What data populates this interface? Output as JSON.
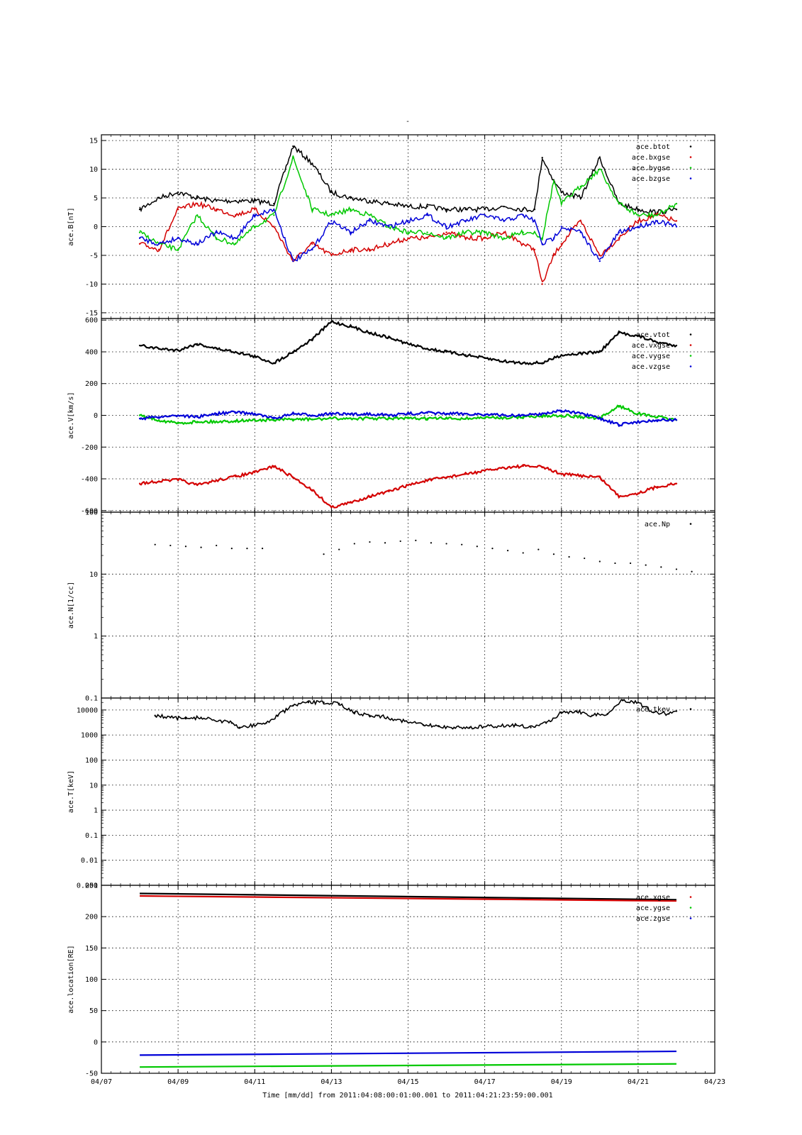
{
  "figure": {
    "top_mark": "-",
    "xlabel": "Time [mm/dd]  from 2011:04:08:00:01:00.001  to  2011:04:21:23:59:00.001",
    "x_ticks": [
      "04/07",
      "04/09",
      "04/11",
      "04/13",
      "04/15",
      "04/17",
      "04/19",
      "04/21",
      "04/23"
    ],
    "x_range_days": [
      0,
      16
    ],
    "colors": {
      "black": "#000000",
      "red": "#d40000",
      "green": "#00c800",
      "blue": "#0000d8",
      "grid": "#000000"
    }
  },
  "chart_data": [
    {
      "type": "scatter",
      "ylabel": "ace.B[nT]",
      "ylim": [
        -16,
        16
      ],
      "yscale": "linear",
      "y_ticks": [
        15,
        10,
        5,
        0,
        -5,
        -10,
        -15
      ],
      "legend": [
        "ace.btot",
        "ace.bxgse",
        "ace.bygse",
        "ace.bzgse"
      ],
      "series": [
        {
          "name": "ace.btot",
          "color": "black",
          "x": [
            1,
            1.5,
            2,
            2.5,
            3,
            3.5,
            4,
            4.5,
            5,
            5.5,
            6,
            6.5,
            7,
            7.5,
            8,
            8.5,
            9,
            9.5,
            10,
            10.5,
            11,
            11.3,
            11.5,
            11.8,
            12,
            12.5,
            13,
            13.5,
            14,
            14.5,
            15
          ],
          "y": [
            3,
            5,
            6,
            5,
            4.5,
            4.5,
            4.5,
            4,
            14,
            11,
            6,
            5,
            4.5,
            4,
            3.5,
            3.5,
            3,
            3,
            3,
            3.5,
            3,
            3,
            12,
            8,
            6,
            5,
            12,
            4,
            3,
            2.5,
            3
          ]
        },
        {
          "name": "ace.bxgse",
          "color": "red",
          "x": [
            1,
            1.5,
            2,
            2.5,
            3,
            3.5,
            4,
            4.5,
            5,
            5.5,
            6,
            6.5,
            7,
            7.5,
            8,
            8.5,
            9,
            9.5,
            10,
            10.5,
            11,
            11.3,
            11.5,
            11.8,
            12,
            12.5,
            13,
            13.5,
            14,
            14.5,
            15
          ],
          "y": [
            -3,
            -4,
            3,
            4,
            3,
            2,
            3,
            0,
            -6,
            -3,
            -5,
            -4,
            -4,
            -3,
            -2,
            -2,
            -1,
            -2,
            -2,
            -1,
            -3,
            -4,
            -10,
            -5,
            -3,
            1,
            -5,
            -2,
            1,
            2,
            1
          ]
        },
        {
          "name": "ace.bygse",
          "color": "green",
          "x": [
            1,
            1.5,
            2,
            2.5,
            3,
            3.5,
            4,
            4.5,
            5,
            5.5,
            6,
            6.5,
            7,
            7.5,
            8,
            8.5,
            9,
            9.5,
            10,
            10.5,
            11,
            11.3,
            11.5,
            11.8,
            12,
            12.5,
            13,
            13.5,
            14,
            14.5,
            15
          ],
          "y": [
            -1,
            -3,
            -4,
            2,
            -2,
            -3,
            0,
            2,
            12,
            3,
            2,
            3,
            2,
            0,
            -1,
            -1,
            -2,
            -1,
            -1,
            -2,
            -1,
            -1,
            -2,
            8,
            4,
            7,
            10,
            4,
            2,
            2,
            4
          ]
        },
        {
          "name": "ace.bzgse",
          "color": "blue",
          "x": [
            1,
            1.5,
            2,
            2.5,
            3,
            3.5,
            4,
            4.5,
            5,
            5.5,
            6,
            6.5,
            7,
            7.5,
            8,
            8.5,
            9,
            9.5,
            10,
            10.5,
            11,
            11.3,
            11.5,
            11.8,
            12,
            12.5,
            13,
            13.5,
            14,
            14.5,
            15
          ],
          "y": [
            -2,
            -3,
            -2,
            -3,
            -1,
            -2,
            2,
            3,
            -6,
            -4,
            1,
            -1,
            1,
            0,
            1,
            2,
            0,
            1,
            2,
            1,
            2,
            1,
            -3,
            -2,
            0,
            -1,
            -6,
            -1,
            0,
            1,
            0
          ]
        }
      ]
    },
    {
      "type": "scatter",
      "ylabel": "ace.V[km/s]",
      "ylim": [
        -610,
        610
      ],
      "yscale": "linear",
      "y_ticks": [
        600,
        400,
        200,
        0,
        -200,
        -400,
        -600
      ],
      "legend": [
        "ace.vtot",
        "ace.vxgse",
        "ace.vygse",
        "ace.vzgse"
      ],
      "series": [
        {
          "name": "ace.vtot",
          "color": "black",
          "x": [
            1,
            1.5,
            2,
            2.5,
            3,
            3.5,
            4,
            4.5,
            5,
            5.5,
            6,
            6.5,
            7,
            7.5,
            8,
            8.5,
            9,
            9.5,
            10,
            10.5,
            11,
            11.5,
            12,
            12.5,
            13,
            13.5,
            14,
            14.5,
            15
          ],
          "y": [
            440,
            420,
            410,
            450,
            420,
            400,
            370,
            330,
            400,
            480,
            590,
            560,
            520,
            490,
            450,
            420,
            400,
            380,
            360,
            340,
            330,
            330,
            380,
            390,
            400,
            520,
            500,
            460,
            440
          ]
        },
        {
          "name": "ace.vxgse",
          "color": "red",
          "x": [
            1,
            1.5,
            2,
            2.5,
            3,
            3.5,
            4,
            4.5,
            5,
            5.5,
            6,
            6.5,
            7,
            7.5,
            8,
            8.5,
            9,
            9.5,
            10,
            10.5,
            11,
            11.5,
            12,
            12.5,
            13,
            13.5,
            14,
            14.5,
            15
          ],
          "y": [
            -430,
            -415,
            -405,
            -440,
            -410,
            -385,
            -360,
            -320,
            -390,
            -470,
            -580,
            -550,
            -510,
            -480,
            -440,
            -410,
            -390,
            -370,
            -350,
            -330,
            -320,
            -325,
            -370,
            -380,
            -390,
            -510,
            -490,
            -450,
            -430
          ]
        },
        {
          "name": "ace.vygse",
          "color": "green",
          "x": [
            1,
            1.5,
            2,
            2.5,
            3,
            3.5,
            4,
            4.5,
            5,
            5.5,
            6,
            6.5,
            7,
            7.5,
            8,
            8.5,
            9,
            9.5,
            10,
            10.5,
            11,
            11.5,
            12,
            12.5,
            13,
            13.5,
            14,
            14.5,
            15
          ],
          "y": [
            0,
            -30,
            -50,
            -40,
            -40,
            -35,
            -30,
            -30,
            -25,
            -25,
            -20,
            -20,
            -20,
            -20,
            -20,
            -20,
            -20,
            -20,
            -15,
            -15,
            -10,
            -5,
            0,
            -10,
            -20,
            60,
            10,
            -10,
            -30
          ]
        },
        {
          "name": "ace.vzgse",
          "color": "blue",
          "x": [
            1,
            1.5,
            2,
            2.5,
            3,
            3.5,
            4,
            4.5,
            5,
            5.5,
            6,
            6.5,
            7,
            7.5,
            8,
            8.5,
            9,
            9.5,
            10,
            10.5,
            11,
            11.5,
            12,
            12.5,
            13,
            13.5,
            14,
            14.5,
            15
          ],
          "y": [
            -20,
            -10,
            0,
            -10,
            10,
            20,
            10,
            -20,
            10,
            0,
            10,
            5,
            10,
            0,
            10,
            15,
            10,
            10,
            5,
            0,
            0,
            10,
            30,
            10,
            -20,
            -60,
            -40,
            -30,
            -30
          ]
        }
      ]
    },
    {
      "type": "scatter",
      "ylabel": "ace.N[1/cc]",
      "ylim": [
        0.1,
        100
      ],
      "yscale": "log",
      "y_ticks": [
        100,
        10,
        1,
        0.1
      ],
      "legend": [
        "ace.Np"
      ],
      "series": [
        {
          "name": "ace.Np",
          "color": "black",
          "x": [
            1.4,
            1.8,
            2.2,
            2.6,
            3.0,
            3.4,
            3.8,
            4.2,
            5.8,
            6.2,
            6.6,
            7.0,
            7.4,
            7.8,
            8.2,
            8.6,
            9.0,
            9.4,
            9.8,
            10.2,
            10.6,
            11.0,
            11.4,
            11.8,
            12.2,
            12.6,
            13.0,
            13.4,
            13.8,
            14.2,
            14.6,
            15.0,
            15.4
          ],
          "y": [
            30,
            29,
            28,
            27,
            29,
            26,
            26,
            26,
            21,
            25,
            31,
            33,
            32,
            34,
            35,
            32,
            31,
            30,
            28,
            26,
            24,
            22,
            25,
            21,
            19,
            18,
            16,
            15,
            15,
            14,
            13,
            12,
            11
          ]
        }
      ]
    },
    {
      "type": "scatter",
      "ylabel": "ace.T[keV]",
      "ylim": [
        0.001,
        30000
      ],
      "yscale": "log",
      "y_ticks": [
        10000,
        1000,
        100,
        10,
        1,
        0.1,
        0.01,
        0.001
      ],
      "legend": [
        "ace.tkev"
      ],
      "series": [
        {
          "name": "ace.tkev",
          "color": "black",
          "x": [
            1.4,
            1.8,
            2.2,
            2.6,
            3.4,
            3.6,
            4.3,
            4.6,
            5.0,
            5.4,
            5.8,
            6.2,
            6.6,
            7.0,
            7.2,
            8.4,
            8.8,
            9.2,
            9.6,
            10.8,
            11.2,
            11.6,
            12.0,
            12.4,
            12.8,
            13.2,
            13.6,
            14.0,
            14.4,
            14.8,
            15.0
          ],
          "y": [
            6000,
            5000,
            4500,
            5000,
            3000,
            2000,
            3000,
            6000,
            15000,
            20000,
            20000,
            18000,
            8000,
            6000,
            6000,
            2500,
            2200,
            2000,
            2000,
            2500,
            2000,
            3000,
            8000,
            9000,
            6000,
            7000,
            25000,
            20000,
            8000,
            7000,
            9000
          ]
        }
      ]
    },
    {
      "type": "line",
      "ylabel": "ace.location[RE]",
      "ylim": [
        -50,
        250
      ],
      "yscale": "linear",
      "y_ticks": [
        250,
        200,
        150,
        100,
        50,
        0,
        -50
      ],
      "legend": [
        "ace.xgse",
        "ace.ygse",
        "ace.zgse"
      ],
      "series": [
        {
          "name": "",
          "color": "black",
          "x": [
            1,
            15
          ],
          "y": [
            237,
            227
          ]
        },
        {
          "name": "ace.xgse",
          "color": "red",
          "x": [
            1,
            15
          ],
          "y": [
            233,
            225
          ]
        },
        {
          "name": "ace.ygse",
          "color": "green",
          "x": [
            1,
            15
          ],
          "y": [
            -40,
            -35
          ]
        },
        {
          "name": "ace.zgse",
          "color": "blue",
          "x": [
            1,
            15
          ],
          "y": [
            -21,
            -15
          ]
        }
      ]
    }
  ]
}
